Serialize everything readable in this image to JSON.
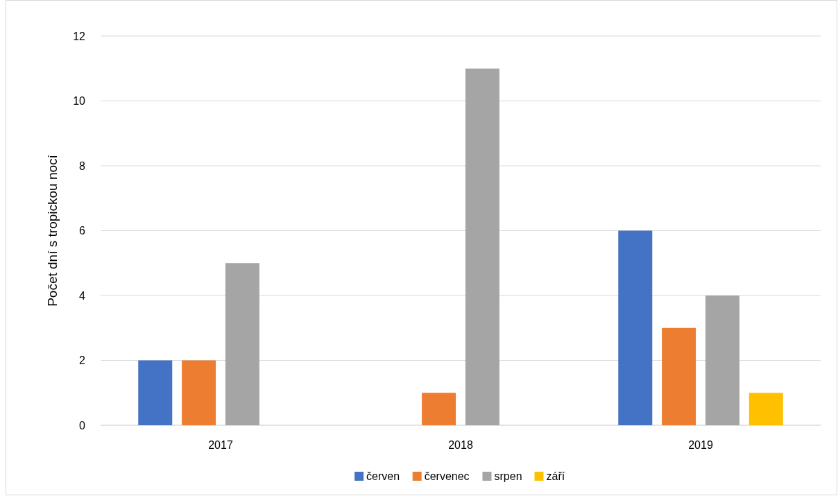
{
  "chart_data": {
    "type": "bar",
    "ylabel": "Počet dní s tropickou nocí",
    "categories": [
      "2017",
      "2018",
      "2019"
    ],
    "series": [
      {
        "name": "červen",
        "color": "#4472c4",
        "values": [
          2,
          0,
          6
        ]
      },
      {
        "name": "červenec",
        "color": "#ed7d31",
        "values": [
          2,
          1,
          3
        ]
      },
      {
        "name": "srpen",
        "color": "#a5a5a5",
        "values": [
          5,
          11,
          4
        ]
      },
      {
        "name": "září",
        "color": "#ffc000",
        "values": [
          0,
          0,
          1
        ]
      }
    ],
    "ylim": [
      0,
      12
    ],
    "yticks": [
      0,
      2,
      4,
      6,
      8,
      10,
      12
    ],
    "grid": "y",
    "legend": "bottom"
  }
}
